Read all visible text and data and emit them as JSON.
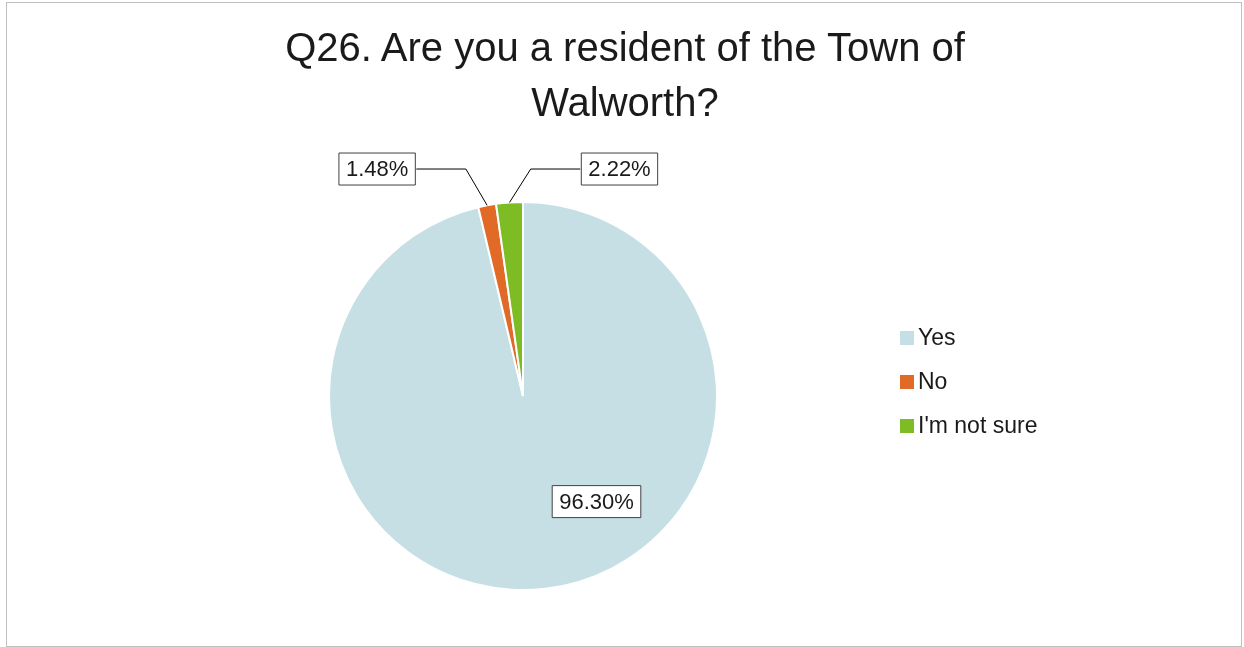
{
  "chart_data": {
    "type": "pie",
    "title": "Q26. Are you a resident of the Town of Walworth?",
    "categories": [
      "Yes",
      "No",
      "I'm not sure"
    ],
    "values": [
      96.3,
      1.48,
      2.22
    ],
    "value_labels": [
      "96.30%",
      "1.48%",
      "2.22%"
    ],
    "colors": [
      "#c5dfe5",
      "#e06a26",
      "#7dbd23"
    ],
    "legend": "right"
  }
}
